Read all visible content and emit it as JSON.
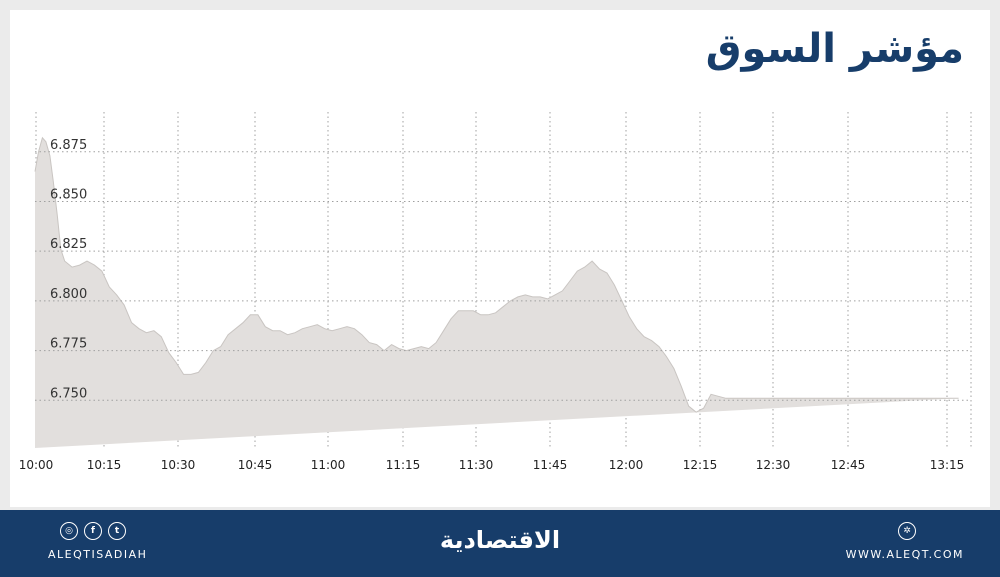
{
  "title": "مؤشر السوق",
  "colors": {
    "brand": "#173d6a",
    "area_fill": "#e2dfdd",
    "area_stroke": "#c9c5c2",
    "grid": "#a0a0a0"
  },
  "chart_data": {
    "type": "area",
    "title": "مؤشر السوق",
    "x_ticks": [
      "10:00",
      "10:15",
      "10:30",
      "10:45",
      "11:00",
      "11:15",
      "11:30",
      "11:45",
      "12:00",
      "12:15",
      "12:30",
      "12:45",
      "13:15"
    ],
    "y_ticks": [
      6.875,
      6.85,
      6.825,
      6.8,
      6.775,
      6.75
    ],
    "y_tick_labels": [
      "6.875",
      "6.850",
      "6.825",
      "6.800",
      "6.775",
      "6.750"
    ],
    "ylim": [
      6.726,
      6.895
    ],
    "grid": true,
    "x_minutes_from_1000": [
      0,
      0.7,
      1.5,
      2.2,
      3,
      3.7,
      4.5,
      5.2,
      6,
      7.5,
      9,
      10.5,
      12,
      13.5,
      15,
      16.5,
      18,
      19.5,
      21,
      22.5,
      24,
      25.5,
      27,
      28.5,
      30,
      31.5,
      33,
      34.5,
      36,
      37.5,
      39,
      40.5,
      42,
      43.5,
      45,
      46.5,
      48,
      49.5,
      51,
      52.5,
      54,
      55.5,
      57,
      58.5,
      60,
      61.5,
      63,
      64.5,
      66,
      67.5,
      69,
      70.5,
      72,
      73.5,
      75,
      76.5,
      78,
      79.5,
      81,
      82.5,
      84,
      85.5,
      87,
      88.5,
      90,
      91.5,
      93,
      94.5,
      96,
      97.5,
      99,
      100.5,
      102,
      103.5,
      105,
      106.5,
      108,
      109.5,
      111,
      112.5,
      114,
      115.5,
      117,
      118.5,
      120,
      121.5,
      123,
      124.5,
      126,
      127.5,
      129,
      130.5,
      132,
      133.5,
      135,
      136.5,
      138,
      139.5,
      141,
      142.5,
      144,
      145.5,
      147,
      148.5,
      150,
      151.5,
      153,
      154.5,
      156,
      157.5,
      159,
      160.5,
      162,
      163.5,
      165,
      166.5,
      168,
      169.5,
      171,
      172.5,
      174,
      175.5,
      177,
      178.5,
      180,
      181.5,
      183,
      184,
      185,
      186.5,
      188,
      189
    ],
    "values": [
      6.865,
      6.875,
      6.882,
      6.88,
      6.873,
      6.86,
      6.843,
      6.826,
      6.82,
      6.817,
      6.818,
      6.82,
      6.818,
      6.815,
      6.807,
      6.803,
      6.798,
      6.789,
      6.786,
      6.784,
      6.785,
      6.782,
      6.774,
      6.769,
      6.763,
      6.763,
      6.764,
      6.769,
      6.775,
      6.777,
      6.783,
      6.786,
      6.789,
      6.793,
      6.793,
      6.787,
      6.785,
      6.785,
      6.783,
      6.784,
      6.786,
      6.787,
      6.788,
      6.786,
      6.785,
      6.786,
      6.787,
      6.786,
      6.783,
      6.779,
      6.778,
      6.775,
      6.778,
      6.776,
      6.775,
      6.776,
      6.777,
      6.776,
      6.779,
      6.785,
      6.791,
      6.795,
      6.795,
      6.795,
      6.793,
      6.793,
      6.794,
      6.797,
      6.8,
      6.802,
      6.803,
      6.802,
      6.802,
      6.801,
      6.803,
      6.805,
      6.81,
      6.815,
      6.817,
      6.82,
      6.816,
      6.814,
      6.808,
      6.8,
      6.792,
      6.786,
      6.782,
      6.78,
      6.777,
      6.772,
      6.766,
      6.757,
      6.747,
      6.744,
      6.746,
      6.753,
      6.752,
      6.751,
      6.751,
      6.751,
      6.751,
      6.751,
      6.751,
      6.751,
      6.751,
      6.751,
      6.751,
      6.751,
      6.751,
      6.751,
      6.751,
      6.751,
      6.751,
      6.751,
      6.751,
      6.751,
      6.751,
      6.751,
      6.751,
      6.751,
      6.751,
      6.751,
      6.751,
      6.751,
      6.751,
      6.751,
      6.751,
      6.751,
      6.751,
      6.751
    ]
  },
  "footer": {
    "social_icons": [
      "instagram-icon",
      "facebook-icon",
      "twitter-icon"
    ],
    "handle": "ALEQTISADIAH",
    "brand": "الاقتصادية",
    "site": "WWW.ALEQT.COM"
  }
}
